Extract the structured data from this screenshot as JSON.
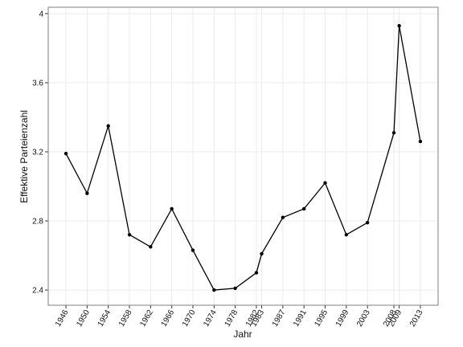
{
  "chart_data": {
    "type": "line",
    "x_label": "Jahr",
    "y_label": "Effektive Parteienzahl",
    "x": [
      1946,
      1950,
      1954,
      1958,
      1962,
      1966,
      1970,
      1974,
      1978,
      1982,
      1983,
      1987,
      1991,
      1995,
      1999,
      2003,
      2008,
      2009,
      2013
    ],
    "series": [
      {
        "color": "#000000",
        "values": [
          3.19,
          2.96,
          3.35,
          2.72,
          2.65,
          2.87,
          2.63,
          2.4,
          2.41,
          2.5,
          2.61,
          2.82,
          2.87,
          3.02,
          2.72,
          2.79,
          3.31,
          3.93,
          3.26
        ]
      }
    ],
    "xlim": [
      1942.65,
      2016.35
    ],
    "ylim": [
      2.312,
      4.037
    ],
    "xticks": [
      1946,
      1950,
      1954,
      1958,
      1962,
      1966,
      1970,
      1974,
      1978,
      1982,
      1983,
      1987,
      1991,
      1995,
      1999,
      2003,
      2008,
      2009,
      2013
    ],
    "yticks": [
      2.4,
      2.8,
      3.2,
      3.6,
      4.0
    ],
    "grid": true
  }
}
